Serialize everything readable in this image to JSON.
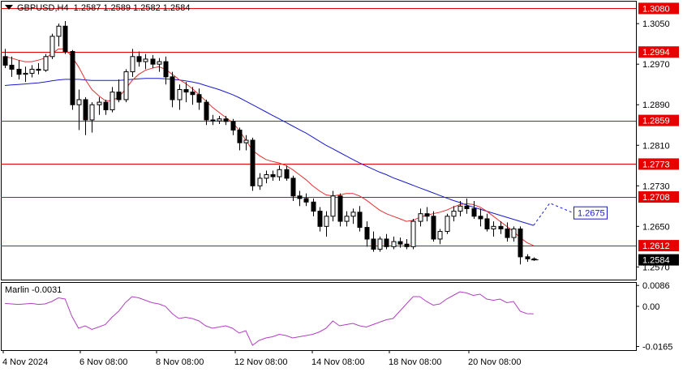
{
  "header": {
    "symbol_line": "GBPUSD,H4  1.2587 1.2589 1.2582 1.2584",
    "indicator_line": "Marlin -0.0031"
  },
  "colors": {
    "level_line": "#e60000",
    "ma_fast": "#e03030",
    "ma_slow": "#1a1acc",
    "candle_up": "#ffffff",
    "candle_down": "#000000",
    "oscillator": "#b040c0",
    "grid_frame": "#000000",
    "label_red_bg": "#e60000",
    "label_text_white": "#ffffff"
  },
  "chart_data": [
    {
      "type": "candlestick",
      "title": "GBPUSD,H4",
      "price_axis_ticks": [
        "1.3050",
        "1.2970",
        "1.2890",
        "1.2810",
        "1.2730",
        "1.2650",
        "1.2570"
      ],
      "ylim": [
        1.2545,
        1.3095
      ],
      "time_axis_ticks": [
        "4 Nov 2024",
        "6 Nov 08:00",
        "8 Nov 08:00",
        "12 Nov 08:00",
        "14 Nov 08:00",
        "18 Nov 08:00",
        "20 Nov 08:00"
      ],
      "last_price": "1.2584",
      "levels": [
        {
          "label": "1.3080",
          "value": 1.308
        },
        {
          "label": "1.2994",
          "value": 1.2994
        },
        {
          "label": "1.2859",
          "value": 1.2859
        },
        {
          "label": "1.2773",
          "value": 1.2773
        },
        {
          "label": "1.2708",
          "value": 1.2708
        },
        {
          "label": "1.2612",
          "value": 1.2612
        }
      ],
      "target_label": {
        "label": "1.2675",
        "value": 1.2675
      },
      "ohlc": [
        [
          1.2985,
          1.3,
          1.2962,
          1.2968
        ],
        [
          1.2968,
          1.2985,
          1.2945,
          1.296
        ],
        [
          1.296,
          1.2978,
          1.294,
          1.295
        ],
        [
          1.295,
          1.2965,
          1.2935,
          1.2952
        ],
        [
          1.2952,
          1.2968,
          1.2944,
          1.296
        ],
        [
          1.296,
          1.2972,
          1.295,
          1.2958
        ],
        [
          1.2958,
          1.299,
          1.2955,
          1.2985
        ],
        [
          1.2985,
          1.303,
          1.298,
          1.3025
        ],
        [
          1.3025,
          1.305,
          1.3005,
          1.3045
        ],
        [
          1.3045,
          1.3055,
          1.299,
          1.2995
        ],
        [
          1.2995,
          1.2998,
          1.288,
          1.289
        ],
        [
          1.289,
          1.292,
          1.284,
          1.29
        ],
        [
          1.29,
          1.2905,
          1.283,
          1.286
        ],
        [
          1.286,
          1.2895,
          1.2835,
          1.289
        ],
        [
          1.289,
          1.2905,
          1.287,
          1.2895
        ],
        [
          1.2895,
          1.29,
          1.287,
          1.288
        ],
        [
          1.288,
          1.2925,
          1.2875,
          1.2915
        ],
        [
          1.2915,
          1.294,
          1.2895,
          1.29
        ],
        [
          1.29,
          1.296,
          1.2895,
          1.2955
        ],
        [
          1.2955,
          1.3,
          1.2945,
          1.2985
        ],
        [
          1.2985,
          1.2995,
          1.2965,
          1.2975
        ],
        [
          1.2975,
          1.299,
          1.296,
          1.298
        ],
        [
          1.298,
          1.2988,
          1.2962,
          1.297
        ],
        [
          1.297,
          1.2982,
          1.2955,
          1.2975
        ],
        [
          1.2975,
          1.2985,
          1.293,
          1.2945
        ],
        [
          1.2945,
          1.2955,
          1.2885,
          1.29
        ],
        [
          1.29,
          1.293,
          1.288,
          1.292
        ],
        [
          1.292,
          1.2935,
          1.2895,
          1.2915
        ],
        [
          1.2915,
          1.2925,
          1.289,
          1.291
        ],
        [
          1.291,
          1.2922,
          1.288,
          1.2895
        ],
        [
          1.2895,
          1.29,
          1.285,
          1.286
        ],
        [
          1.286,
          1.287,
          1.285,
          1.2858
        ],
        [
          1.2858,
          1.2868,
          1.2852,
          1.2862
        ],
        [
          1.2862,
          1.2868,
          1.285,
          1.2857
        ],
        [
          1.2857,
          1.2862,
          1.283,
          1.284
        ],
        [
          1.284,
          1.2845,
          1.28,
          1.2815
        ],
        [
          1.2815,
          1.283,
          1.28,
          1.282
        ],
        [
          1.282,
          1.2825,
          1.272,
          1.273
        ],
        [
          1.273,
          1.2755,
          1.2722,
          1.2745
        ],
        [
          1.2745,
          1.276,
          1.2735,
          1.2752
        ],
        [
          1.2752,
          1.276,
          1.274,
          1.2748
        ],
        [
          1.2748,
          1.277,
          1.274,
          1.2762
        ],
        [
          1.2762,
          1.277,
          1.274,
          1.2745
        ],
        [
          1.2745,
          1.275,
          1.27,
          1.271
        ],
        [
          1.271,
          1.272,
          1.269,
          1.2705
        ],
        [
          1.2705,
          1.2715,
          1.269,
          1.2698
        ],
        [
          1.2698,
          1.2705,
          1.267,
          1.268
        ],
        [
          1.268,
          1.2688,
          1.264,
          1.265
        ],
        [
          1.265,
          1.268,
          1.263,
          1.267
        ],
        [
          1.267,
          1.272,
          1.266,
          1.271
        ],
        [
          1.271,
          1.2715,
          1.265,
          1.266
        ],
        [
          1.266,
          1.268,
          1.265,
          1.267
        ],
        [
          1.267,
          1.2685,
          1.2655,
          1.2678
        ],
        [
          1.2678,
          1.269,
          1.264,
          1.2648
        ],
        [
          1.2648,
          1.266,
          1.261,
          1.2625
        ],
        [
          1.2625,
          1.264,
          1.26,
          1.2605
        ],
        [
          1.2605,
          1.263,
          1.26,
          1.2625
        ],
        [
          1.2625,
          1.2635,
          1.2605,
          1.261
        ],
        [
          1.261,
          1.263,
          1.2605,
          1.262
        ],
        [
          1.262,
          1.2628,
          1.2608,
          1.2615
        ],
        [
          1.2615,
          1.2625,
          1.2605,
          1.261
        ],
        [
          1.261,
          1.2665,
          1.2605,
          1.266
        ],
        [
          1.266,
          1.2685,
          1.265,
          1.2675
        ],
        [
          1.2675,
          1.2688,
          1.266,
          1.267
        ],
        [
          1.267,
          1.268,
          1.262,
          1.2625
        ],
        [
          1.2625,
          1.2645,
          1.2615,
          1.264
        ],
        [
          1.264,
          1.2675,
          1.2635,
          1.267
        ],
        [
          1.267,
          1.269,
          1.266,
          1.268
        ],
        [
          1.268,
          1.27,
          1.267,
          1.269
        ],
        [
          1.269,
          1.2705,
          1.2675,
          1.2685
        ],
        [
          1.2685,
          1.27,
          1.2665,
          1.267
        ],
        [
          1.267,
          1.2685,
          1.265,
          1.2665
        ],
        [
          1.2665,
          1.2675,
          1.264,
          1.2645
        ],
        [
          1.2645,
          1.266,
          1.263,
          1.265
        ],
        [
          1.265,
          1.266,
          1.2635,
          1.2645
        ],
        [
          1.2645,
          1.2658,
          1.262,
          1.2628
        ],
        [
          1.2628,
          1.265,
          1.262,
          1.2645
        ],
        [
          1.2645,
          1.265,
          1.2575,
          1.259
        ],
        [
          1.259,
          1.2595,
          1.258,
          1.2586
        ],
        [
          1.2586,
          1.2589,
          1.2582,
          1.2584
        ]
      ],
      "ma_fast": [
        1.2985,
        1.2982,
        1.2978,
        1.2975,
        1.2975,
        1.2978,
        1.2982,
        1.299,
        1.3,
        1.3,
        1.2985,
        1.2965,
        1.294,
        1.292,
        1.2908,
        1.2898,
        1.2898,
        1.2905,
        1.292,
        1.2938,
        1.295,
        1.2958,
        1.2962,
        1.2965,
        1.296,
        1.295,
        1.294,
        1.2932,
        1.2922,
        1.291,
        1.2898,
        1.2885,
        1.2875,
        1.2865,
        1.2855,
        1.284,
        1.282,
        1.28,
        1.279,
        1.2782,
        1.2778,
        1.2775,
        1.277,
        1.2762,
        1.2752,
        1.2742,
        1.273,
        1.272,
        1.2712,
        1.271,
        1.2712,
        1.2715,
        1.2715,
        1.271,
        1.2702,
        1.2692,
        1.2682,
        1.2675,
        1.267,
        1.2665,
        1.266,
        1.2662,
        1.2668,
        1.2672,
        1.2675,
        1.2678,
        1.2682,
        1.2688,
        1.2693,
        1.2695,
        1.2693,
        1.2688,
        1.268,
        1.267,
        1.266,
        1.265,
        1.264,
        1.2628,
        1.2618,
        1.2612
      ],
      "ma_slow": [
        1.2928,
        1.2929,
        1.293,
        1.2931,
        1.2932,
        1.2933,
        1.2935,
        1.2937,
        1.2939,
        1.294,
        1.294,
        1.294,
        1.2939,
        1.2938,
        1.2938,
        1.2938,
        1.2938,
        1.2938,
        1.2939,
        1.294,
        1.2941,
        1.2942,
        1.2942,
        1.2942,
        1.2941,
        1.294,
        1.2939,
        1.2937,
        1.2935,
        1.2932,
        1.2928,
        1.2924,
        1.292,
        1.2915,
        1.291,
        1.2904,
        1.2897,
        1.289,
        1.2883,
        1.2876,
        1.2869,
        1.2862,
        1.2855,
        1.2848,
        1.2841,
        1.2834,
        1.2826,
        1.2818,
        1.281,
        1.2803,
        1.2796,
        1.2789,
        1.2782,
        1.2775,
        1.2769,
        1.2763,
        1.2757,
        1.2752,
        1.2746,
        1.2741,
        1.2736,
        1.2731,
        1.2726,
        1.2721,
        1.2716,
        1.2711,
        1.2706,
        1.2701,
        1.2697,
        1.2692,
        1.2688,
        1.2684,
        1.268,
        1.2676,
        1.2672,
        1.2668,
        1.2664,
        1.266,
        1.2656,
        1.2652
      ],
      "ma_slow_projection": [
        1.2696,
        1.2675
      ]
    },
    {
      "type": "line",
      "title": "Marlin",
      "value": "-0.0031",
      "axis_ticks": [
        "0.0086",
        "0.00",
        "-0.0165"
      ],
      "ylim": [
        -0.018,
        0.01
      ],
      "values": [
        0.0012,
        0.001,
        0.0008,
        0.001,
        0.0012,
        0.0008,
        0.001,
        0.002,
        0.0035,
        0.003,
        -0.004,
        -0.009,
        -0.008,
        -0.0095,
        -0.0085,
        -0.0075,
        -0.0045,
        -0.002,
        0.0015,
        0.004,
        0.0035,
        0.0025,
        0.0015,
        0.001,
        0.0,
        -0.003,
        -0.005,
        -0.0045,
        -0.005,
        -0.006,
        -0.008,
        -0.009,
        -0.0085,
        -0.008,
        -0.009,
        -0.011,
        -0.01,
        -0.016,
        -0.014,
        -0.013,
        -0.0125,
        -0.0115,
        -0.012,
        -0.013,
        -0.0125,
        -0.012,
        -0.0115,
        -0.0105,
        -0.009,
        -0.006,
        -0.008,
        -0.0075,
        -0.007,
        -0.008,
        -0.0085,
        -0.0075,
        -0.0065,
        -0.0055,
        -0.005,
        -0.002,
        0.001,
        0.004,
        0.004,
        0.002,
        0.0005,
        0.001,
        0.003,
        0.0045,
        0.006,
        0.0055,
        0.0045,
        0.005,
        0.003,
        0.0025,
        0.003,
        0.0015,
        0.002,
        -0.002,
        -0.003,
        -0.0031
      ],
      "time_axis_ticks": [
        "4 Nov 2024",
        "6 Nov 08:00",
        "8 Nov 08:00",
        "12 Nov 08:00",
        "14 Nov 08:00",
        "18 Nov 08:00",
        "20 Nov 08:00"
      ]
    }
  ]
}
